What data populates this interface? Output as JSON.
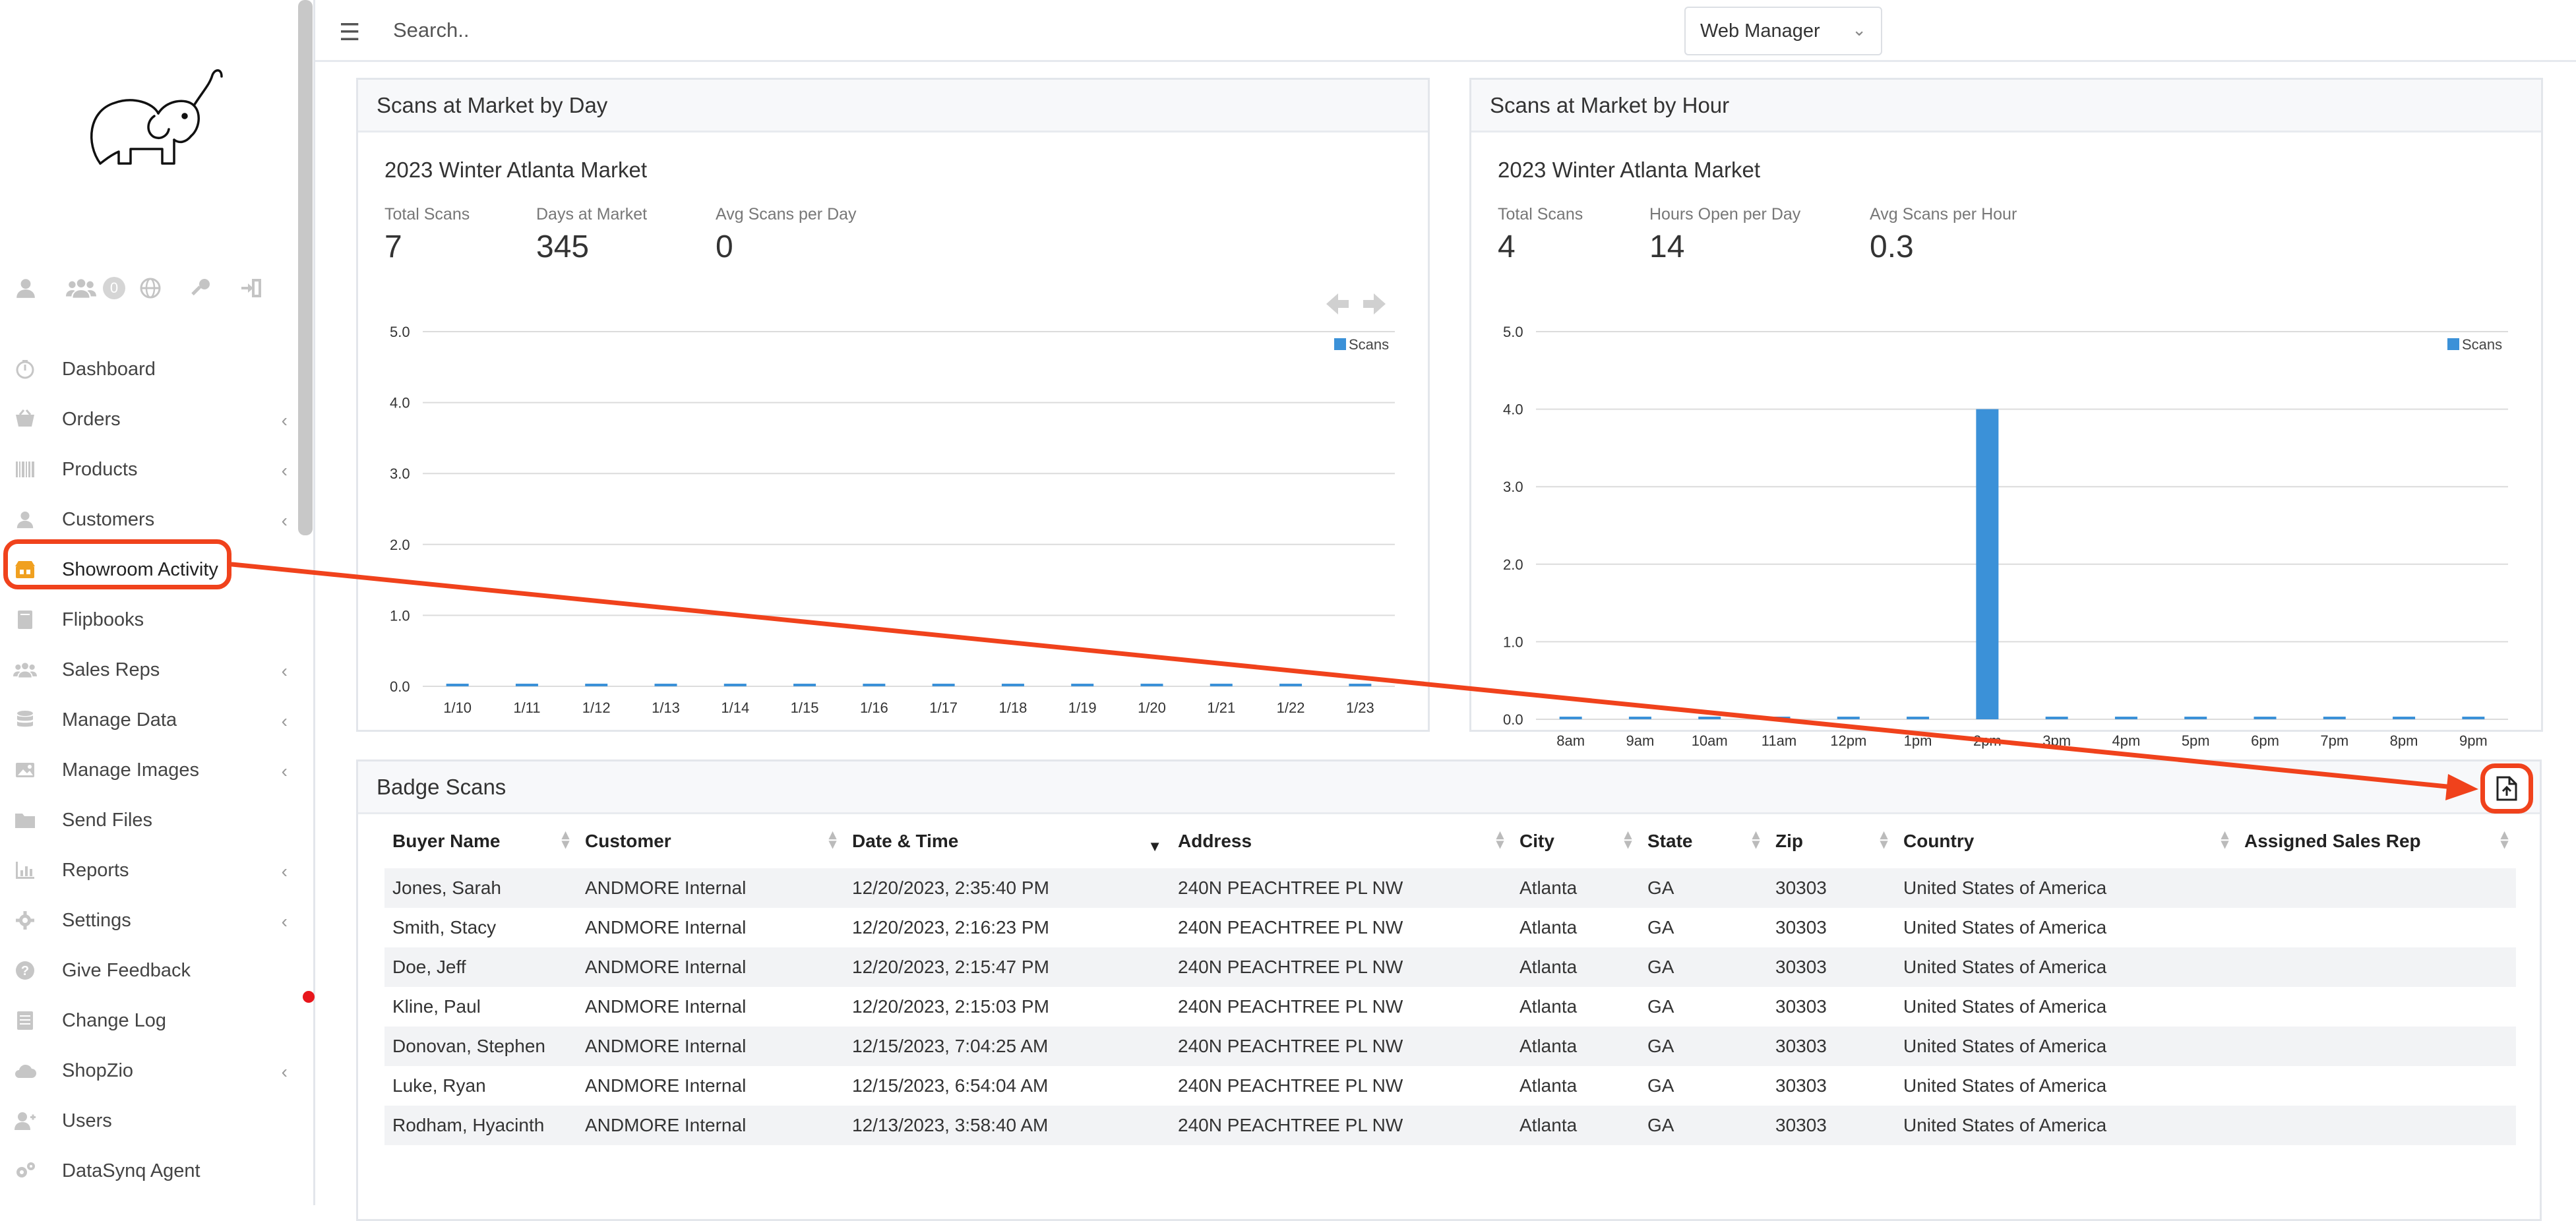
{
  "topbar": {
    "search_placeholder": "Search..",
    "role_select": "Web Manager"
  },
  "sidebar": {
    "user_badge_count": "0",
    "items": [
      {
        "label": "Dashboard",
        "icon": "dashboard-icon",
        "chevron": false
      },
      {
        "label": "Orders",
        "icon": "orders-icon",
        "chevron": true
      },
      {
        "label": "Products",
        "icon": "barcode-icon",
        "chevron": true
      },
      {
        "label": "Customers",
        "icon": "user-icon",
        "chevron": true
      },
      {
        "label": "Showroom Activity",
        "icon": "showroom-icon",
        "chevron": false,
        "active": true
      },
      {
        "label": "Flipbooks",
        "icon": "book-icon",
        "chevron": false
      },
      {
        "label": "Sales Reps",
        "icon": "users-icon",
        "chevron": true
      },
      {
        "label": "Manage Data",
        "icon": "database-icon",
        "chevron": true
      },
      {
        "label": "Manage Images",
        "icon": "image-icon",
        "chevron": true
      },
      {
        "label": "Send Files",
        "icon": "folder-icon",
        "chevron": false
      },
      {
        "label": "Reports",
        "icon": "chart-icon",
        "chevron": true
      },
      {
        "label": "Settings",
        "icon": "gear-icon",
        "chevron": true
      },
      {
        "label": "Give Feedback",
        "icon": "question-icon",
        "chevron": false
      },
      {
        "label": "Change Log",
        "icon": "list-icon",
        "chevron": false
      },
      {
        "label": "ShopZio",
        "icon": "cloud-icon",
        "chevron": true
      },
      {
        "label": "Users",
        "icon": "user-plus-icon",
        "chevron": false
      },
      {
        "label": "DataSynq Agent",
        "icon": "cogs-icon",
        "chevron": false
      }
    ]
  },
  "day_panel": {
    "header": "Scans at Market by Day",
    "market": "2023 Winter Atlanta Market",
    "stats": [
      {
        "label": "Total Scans",
        "value": "7"
      },
      {
        "label": "Days at Market",
        "value": "345"
      },
      {
        "label": "Avg Scans per Day",
        "value": "0"
      }
    ]
  },
  "hour_panel": {
    "header": "Scans at Market by Hour",
    "market": "2023 Winter Atlanta Market",
    "stats": [
      {
        "label": "Total Scans",
        "value": "4"
      },
      {
        "label": "Hours Open per Day",
        "value": "14"
      },
      {
        "label": "Avg Scans per Hour",
        "value": "0.3"
      }
    ]
  },
  "chart_data": [
    {
      "type": "bar",
      "categories": [
        "1/10",
        "1/11",
        "1/12",
        "1/13",
        "1/14",
        "1/15",
        "1/16",
        "1/17",
        "1/18",
        "1/19",
        "1/20",
        "1/21",
        "1/22",
        "1/23"
      ],
      "series": [
        {
          "name": "Scans",
          "values": [
            0,
            0,
            0,
            0,
            0,
            0,
            0,
            0,
            0,
            0,
            0,
            0,
            0,
            0
          ]
        }
      ],
      "yticks": [
        "0.0",
        "1.0",
        "2.0",
        "3.0",
        "4.0",
        "5.0"
      ],
      "ylim": [
        0,
        5
      ],
      "legend": "top-right",
      "grid": true,
      "color": "#3b91d8"
    },
    {
      "type": "bar",
      "categories": [
        "8am",
        "9am",
        "10am",
        "11am",
        "12pm",
        "1pm",
        "2pm",
        "3pm",
        "4pm",
        "5pm",
        "6pm",
        "7pm",
        "8pm",
        "9pm"
      ],
      "series": [
        {
          "name": "Scans",
          "values": [
            0,
            0,
            0,
            0,
            0,
            0,
            4,
            0,
            0,
            0,
            0,
            0,
            0,
            0
          ]
        }
      ],
      "yticks": [
        "0.0",
        "1.0",
        "2.0",
        "3.0",
        "4.0",
        "5.0"
      ],
      "ylim": [
        0,
        5
      ],
      "legend": "top-right",
      "grid": true,
      "color": "#3b91d8"
    }
  ],
  "badge_panel": {
    "header": "Badge Scans",
    "columns": [
      "Buyer Name",
      "Customer",
      "Date & Time",
      "Address",
      "City",
      "State",
      "Zip",
      "Country",
      "Assigned Sales Rep"
    ],
    "rows": [
      [
        "Jones, Sarah",
        "ANDMORE Internal",
        "12/20/2023, 2:35:40 PM",
        "240N PEACHTREE PL NW",
        "Atlanta",
        "GA",
        "30303",
        "United States of America",
        ""
      ],
      [
        "Smith, Stacy",
        "ANDMORE Internal",
        "12/20/2023, 2:16:23 PM",
        "240N PEACHTREE PL NW",
        "Atlanta",
        "GA",
        "30303",
        "United States of America",
        ""
      ],
      [
        "Doe, Jeff",
        "ANDMORE Internal",
        "12/20/2023, 2:15:47 PM",
        "240N PEACHTREE PL NW",
        "Atlanta",
        "GA",
        "30303",
        "United States of America",
        ""
      ],
      [
        "Kline, Paul",
        "ANDMORE Internal",
        "12/20/2023, 2:15:03 PM",
        "240N PEACHTREE PL NW",
        "Atlanta",
        "GA",
        "30303",
        "United States of America",
        ""
      ],
      [
        "Donovan, Stephen",
        "ANDMORE Internal",
        "12/15/2023, 7:04:25 AM",
        "240N PEACHTREE PL NW",
        "Atlanta",
        "GA",
        "30303",
        "United States of America",
        ""
      ],
      [
        "Luke, Ryan",
        "ANDMORE Internal",
        "12/15/2023, 6:54:04 AM",
        "240N PEACHTREE PL NW",
        "Atlanta",
        "GA",
        "30303",
        "United States of America",
        ""
      ],
      [
        "Rodham, Hyacinth",
        "ANDMORE Internal",
        "12/13/2023, 3:58:40 AM",
        "240N PEACHTREE PL NW",
        "Atlanta",
        "GA",
        "30303",
        "United States of America",
        ""
      ]
    ]
  },
  "colors": {
    "accent": "#3b91d8",
    "highlight": "#f0421c",
    "active_icon": "#f0a020"
  }
}
